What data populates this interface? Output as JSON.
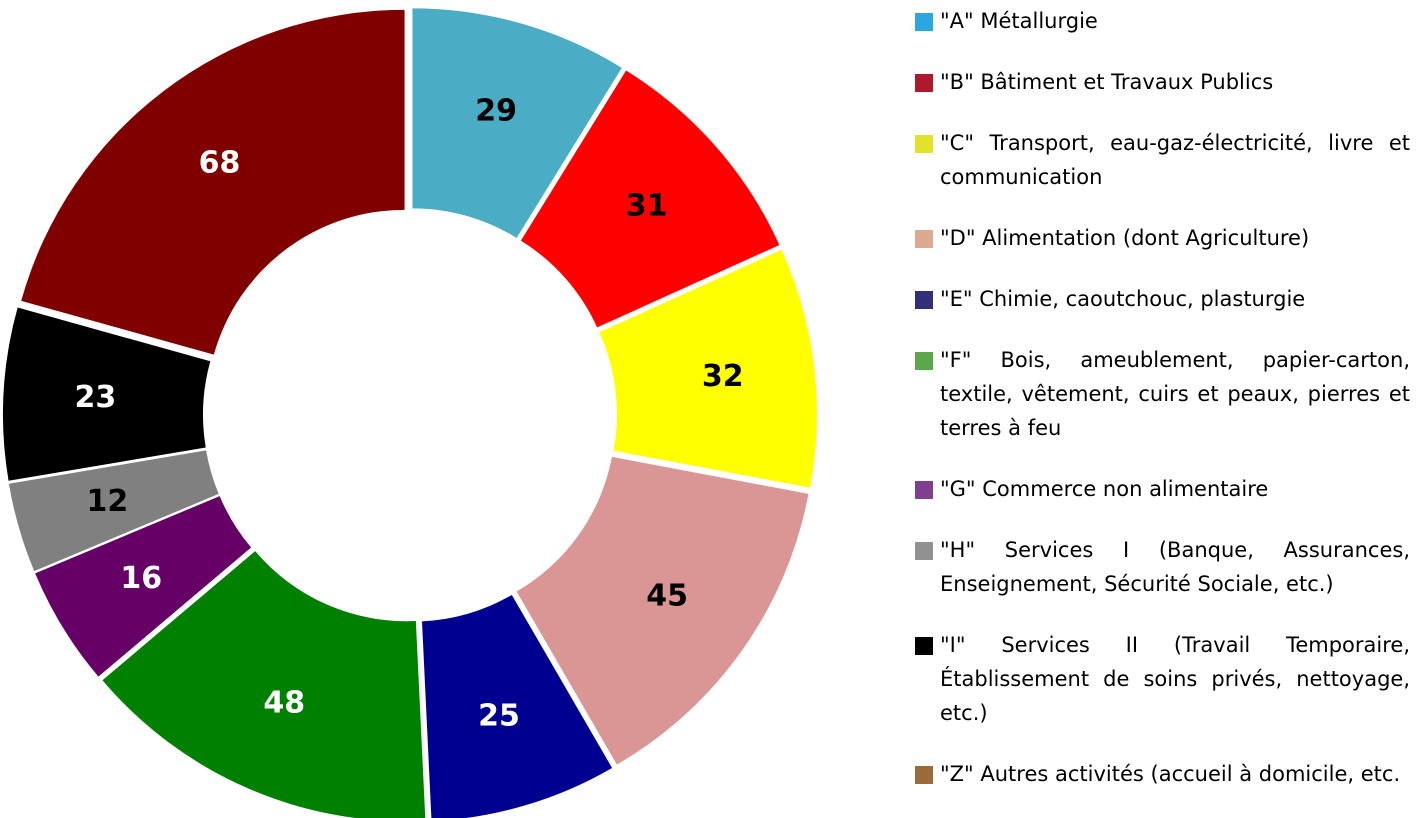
{
  "chart_data": {
    "type": "pie",
    "categories": [
      "\"A\" Métallurgie",
      "\"B\" Bâtiment et Travaux Publics",
      "\"C\" Transport, eau-gaz-électricité, livre et communication",
      "\"D\" Alimentation (dont Agriculture)",
      "\"E\" Chimie, caoutchouc, plasturgie",
      "\"F\" Bois, ameublement, papier-carton, textile, vêtement, cuirs et peaux, pierres et terres à feu",
      "\"G\" Commerce non alimentaire",
      "\"H\" Services I (Banque, Assurances, Enseignement, Sécurité Sociale, etc.)",
      "\"I\" Services II (Travail Temporaire, Établissement de soins privés, nettoyage, etc.)",
      "\"Z\" Autres activités (accueil à domicile, etc."
    ],
    "values": [
      29,
      31,
      32,
      45,
      25,
      48,
      16,
      12,
      23,
      68
    ],
    "colors": [
      "#4bacc6",
      "#ff0000",
      "#ffff00",
      "#d99694",
      "#000090",
      "#008000",
      "#660066",
      "#808080",
      "#000000",
      "#800000"
    ],
    "legend_colors": [
      "#2aa7e0",
      "#b0182d",
      "#e2e22a",
      "#dba98f",
      "#322f7a",
      "#5ba84a",
      "#7f3f8f",
      "#919191",
      "#000000",
      "#9a6a3a"
    ],
    "label_colors": [
      "#000000",
      "#000000",
      "#000000",
      "#000000",
      "#ffffff",
      "#ffffff",
      "#ffffff",
      "#000000",
      "#ffffff",
      "#ffffff"
    ],
    "donut": true
  }
}
